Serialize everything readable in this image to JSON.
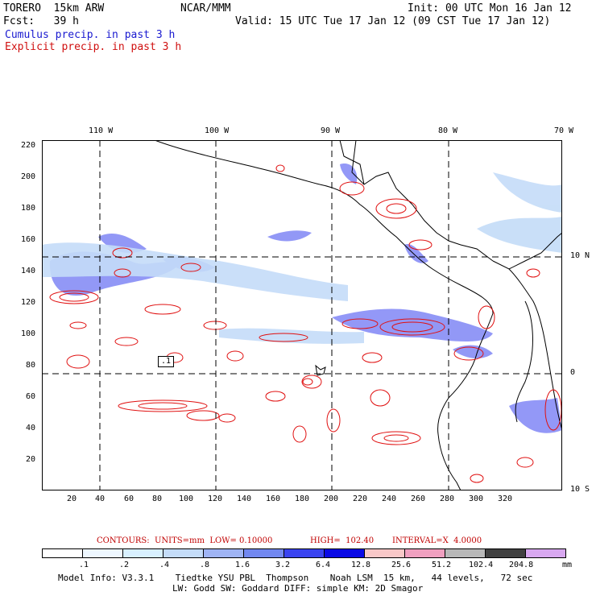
{
  "header": {
    "model": "TORERO  15km ARW",
    "org": "NCAR/MMM",
    "init": "Init: 00 UTC Mon 16 Jan 12",
    "fcst": "Fcst:   39 h",
    "valid": "Valid: 15 UTC Tue 17 Jan 12 (09 CST Tue 17 Jan 12)",
    "cumulus": "Cumulus precip. in past 3 h",
    "explicit": "Explicit precip. in past 3 h"
  },
  "axes": {
    "lon_labels": [
      "110 W",
      "100 W",
      "90 W",
      "80 W",
      "70 W"
    ],
    "lat_labels": [
      "10 N",
      "0",
      "10 S"
    ],
    "x_ticks": [
      "20",
      "40",
      "60",
      "80",
      "100",
      "120",
      "140",
      "160",
      "180",
      "200",
      "220",
      "240",
      "260",
      "280",
      "300",
      "320"
    ],
    "y_ticks": [
      "220",
      "200",
      "180",
      "160",
      "140",
      "120",
      "100",
      "80",
      "60",
      "40",
      "20"
    ],
    "contour_label": ".1"
  },
  "contours_line": {
    "units_label": "CONTOURS:  UNITS=mm  LOW= 0.10000",
    "high_label": "HIGH=  102.40",
    "interval_label": "INTERVAL=X  4.0000"
  },
  "colorbar": {
    "labels": [
      ".1",
      ".2",
      ".4",
      ".8",
      "1.6",
      "3.2",
      "6.4",
      "12.8",
      "25.6",
      "51.2",
      "102.4",
      "204.8"
    ],
    "unit": "mm",
    "colors": [
      "#ffffff",
      "#eef7ff",
      "#d8f0ff",
      "#c4dcf8",
      "#9fb4f4",
      "#7288f0",
      "#3a44f0",
      "#0a0ae6",
      "#f8c8c8",
      "#f0a0c0",
      "#b8b8b8",
      "#404040",
      "#d8a8f0"
    ]
  },
  "footer": {
    "line1": "Model Info: V3.3.1    Tiedtke YSU PBL  Thompson    Noah LSM  15 km,   44 levels,   72 sec",
    "line2": "LW: Godd SW: Goddard DIFF: simple KM: 2D Smagor"
  }
}
